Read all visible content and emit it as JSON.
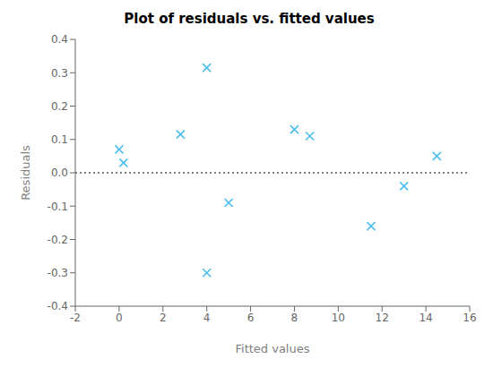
{
  "chart_data": {
    "type": "scatter",
    "title": "Plot of residuals vs. fitted values",
    "x_label": "Fitted values",
    "y_label": "Residuals",
    "x": [
      0.0,
      0.2,
      2.8,
      4.0,
      4.0,
      5.0,
      8.0,
      8.7,
      11.5,
      13.0,
      14.5
    ],
    "values": [
      0.07,
      0.03,
      0.115,
      0.315,
      -0.3,
      -0.09,
      0.13,
      0.11,
      -0.16,
      -0.04,
      0.05
    ],
    "color": "#4DBEEE",
    "marker": "x",
    "xlim": [
      -2,
      16
    ],
    "ylim": [
      -0.4,
      0.4
    ],
    "xticks": [
      -2,
      0,
      2,
      4,
      6,
      8,
      10,
      12,
      14,
      16
    ],
    "yticks": [
      -0.4,
      -0.3,
      -0.2,
      -0.1,
      {
        "value": 0.0,
        "label": "0.0"
      },
      0.1,
      0.2,
      0.3,
      0.4
    ],
    "hline": {
      "y": 0,
      "color": "black",
      "line_style": "dotted"
    },
    "grid": false
  }
}
